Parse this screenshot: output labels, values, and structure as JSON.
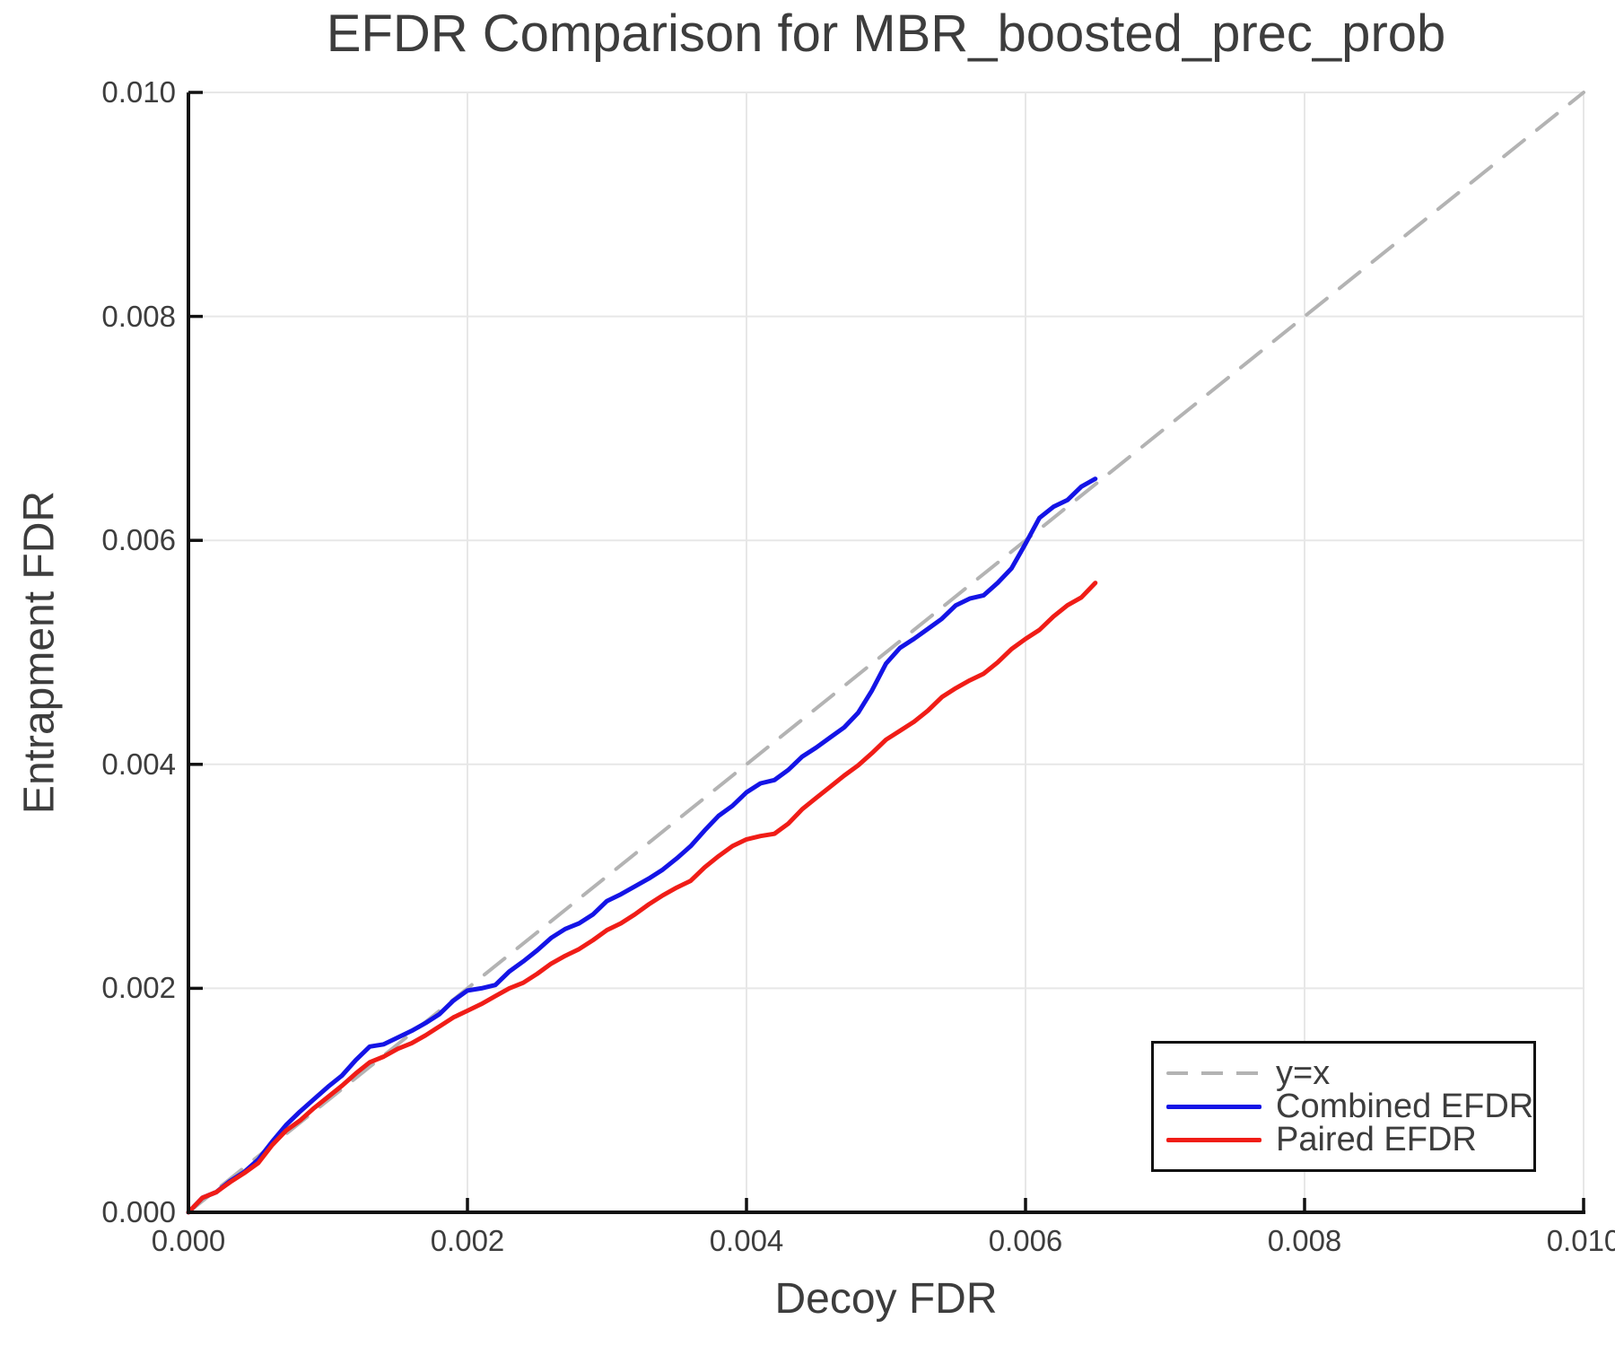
{
  "title": "EFDR Comparison for MBR_boosted_prec_prob",
  "xlabel": "Decoy FDR",
  "ylabel": "Entrapment FDR",
  "colors": {
    "text": "#3d3d3d",
    "axis": "#111111",
    "grid": "#e7e7e7",
    "reference": "#b3b3b3",
    "combined": "#1414e6",
    "paired": "#f01d17",
    "background": "#ffffff"
  },
  "legend": {
    "items": [
      {
        "label": "y=x",
        "color": "#b3b3b3",
        "style": "dashed"
      },
      {
        "label": "Combined EFDR",
        "color": "#1414e6",
        "style": "solid"
      },
      {
        "label": "Paired EFDR",
        "color": "#f01d17",
        "style": "solid"
      }
    ]
  },
  "chart_data": {
    "type": "line",
    "title": "EFDR Comparison for MBR_boosted_prec_prob",
    "xlabel": "Decoy FDR",
    "ylabel": "Entrapment FDR",
    "xlim": [
      0.0,
      0.01
    ],
    "ylim": [
      0.0,
      0.01
    ],
    "grid": true,
    "legend_position": "lower right",
    "x_ticks": [
      "0.000",
      "0.002",
      "0.004",
      "0.006",
      "0.008",
      "0.010"
    ],
    "x_tick_values": [
      0.0,
      0.002,
      0.004,
      0.006,
      0.008,
      0.01
    ],
    "y_ticks": [
      "0.000",
      "0.002",
      "0.004",
      "0.006",
      "0.008",
      "0.010"
    ],
    "y_tick_values": [
      0.0,
      0.002,
      0.004,
      0.006,
      0.008,
      0.01
    ],
    "series": [
      {
        "name": "y=x",
        "style": "dashed",
        "color": "#b3b3b3",
        "x": [
          0.0,
          0.01
        ],
        "y": [
          0.0,
          0.01
        ]
      },
      {
        "name": "Combined EFDR",
        "style": "solid",
        "color": "#1414e6",
        "x": [
          0,
          0.0001,
          0.0002,
          0.0003,
          0.0004,
          0.0005,
          0.0006,
          0.0007,
          0.0008,
          0.0009,
          0.001,
          0.0011,
          0.0012,
          0.0013,
          0.0014,
          0.0015,
          0.0016,
          0.0017,
          0.0018,
          0.0019,
          0.002,
          0.0021,
          0.0022,
          0.0023,
          0.0024,
          0.0025,
          0.0026,
          0.0027,
          0.0028,
          0.0029,
          0.003,
          0.0031,
          0.0032,
          0.0033,
          0.0034,
          0.0035,
          0.0036,
          0.0037,
          0.0038,
          0.0039,
          0.004,
          0.0041,
          0.0042,
          0.0043,
          0.0044,
          0.0045,
          0.0046,
          0.0047,
          0.0048,
          0.0049,
          0.005,
          0.0051,
          0.0052,
          0.0053,
          0.0054,
          0.0055,
          0.0056,
          0.0057,
          0.0058,
          0.0059,
          0.006,
          0.0061,
          0.0062,
          0.0063,
          0.0064,
          0.0065
        ],
        "y": [
          0,
          0.00013,
          0.00018,
          0.00028,
          0.00036,
          0.00047,
          0.00063,
          0.00078,
          0.0009,
          0.00101,
          0.00112,
          0.00122,
          0.00136,
          0.00148,
          0.0015,
          0.00156,
          0.00162,
          0.00169,
          0.00177,
          0.00189,
          0.00198,
          0.002,
          0.00203,
          0.00215,
          0.00224,
          0.00234,
          0.00245,
          0.00253,
          0.00258,
          0.00266,
          0.00278,
          0.00284,
          0.00291,
          0.00298,
          0.00306,
          0.00316,
          0.00327,
          0.00341,
          0.00354,
          0.00363,
          0.00375,
          0.00383,
          0.00386,
          0.00395,
          0.00407,
          0.00415,
          0.00424,
          0.00433,
          0.00446,
          0.00466,
          0.0049,
          0.00504,
          0.00512,
          0.00521,
          0.0053,
          0.00542,
          0.00548,
          0.00551,
          0.00562,
          0.00575,
          0.00597,
          0.0062,
          0.0063,
          0.00636,
          0.00648,
          0.00655
        ]
      },
      {
        "name": "Paired EFDR",
        "style": "solid",
        "color": "#f01d17",
        "x": [
          0,
          0.0001,
          0.0002,
          0.0003,
          0.0004,
          0.0005,
          0.0006,
          0.0007,
          0.0008,
          0.0009,
          0.001,
          0.0011,
          0.0012,
          0.0013,
          0.0014,
          0.0015,
          0.0016,
          0.0017,
          0.0018,
          0.0019,
          0.002,
          0.0021,
          0.0022,
          0.0023,
          0.0024,
          0.0025,
          0.0026,
          0.0027,
          0.0028,
          0.0029,
          0.003,
          0.0031,
          0.0032,
          0.0033,
          0.0034,
          0.0035,
          0.0036,
          0.0037,
          0.0038,
          0.0039,
          0.004,
          0.0041,
          0.0042,
          0.0043,
          0.0044,
          0.0045,
          0.0046,
          0.0047,
          0.0048,
          0.0049,
          0.005,
          0.0051,
          0.0052,
          0.0053,
          0.0054,
          0.0055,
          0.0056,
          0.0057,
          0.0058,
          0.0059,
          0.006,
          0.0061,
          0.0062,
          0.0063,
          0.0064,
          0.0065
        ],
        "y": [
          0,
          0.00013,
          0.00018,
          0.00027,
          0.00035,
          0.00044,
          0.0006,
          0.00073,
          0.00082,
          0.00093,
          0.00103,
          0.00113,
          0.00124,
          0.00134,
          0.00139,
          0.00146,
          0.00151,
          0.00158,
          0.00166,
          0.00174,
          0.0018,
          0.00186,
          0.00193,
          0.002,
          0.00205,
          0.00213,
          0.00222,
          0.00229,
          0.00235,
          0.00243,
          0.00252,
          0.00258,
          0.00266,
          0.00275,
          0.00283,
          0.0029,
          0.00296,
          0.00308,
          0.00318,
          0.00327,
          0.00333,
          0.00336,
          0.00338,
          0.00347,
          0.0036,
          0.0037,
          0.0038,
          0.0039,
          0.00399,
          0.0041,
          0.00422,
          0.0043,
          0.00438,
          0.00448,
          0.0046,
          0.00468,
          0.00475,
          0.00481,
          0.00491,
          0.00503,
          0.00512,
          0.0052,
          0.00532,
          0.00542,
          0.00549,
          0.00562
        ]
      }
    ]
  }
}
